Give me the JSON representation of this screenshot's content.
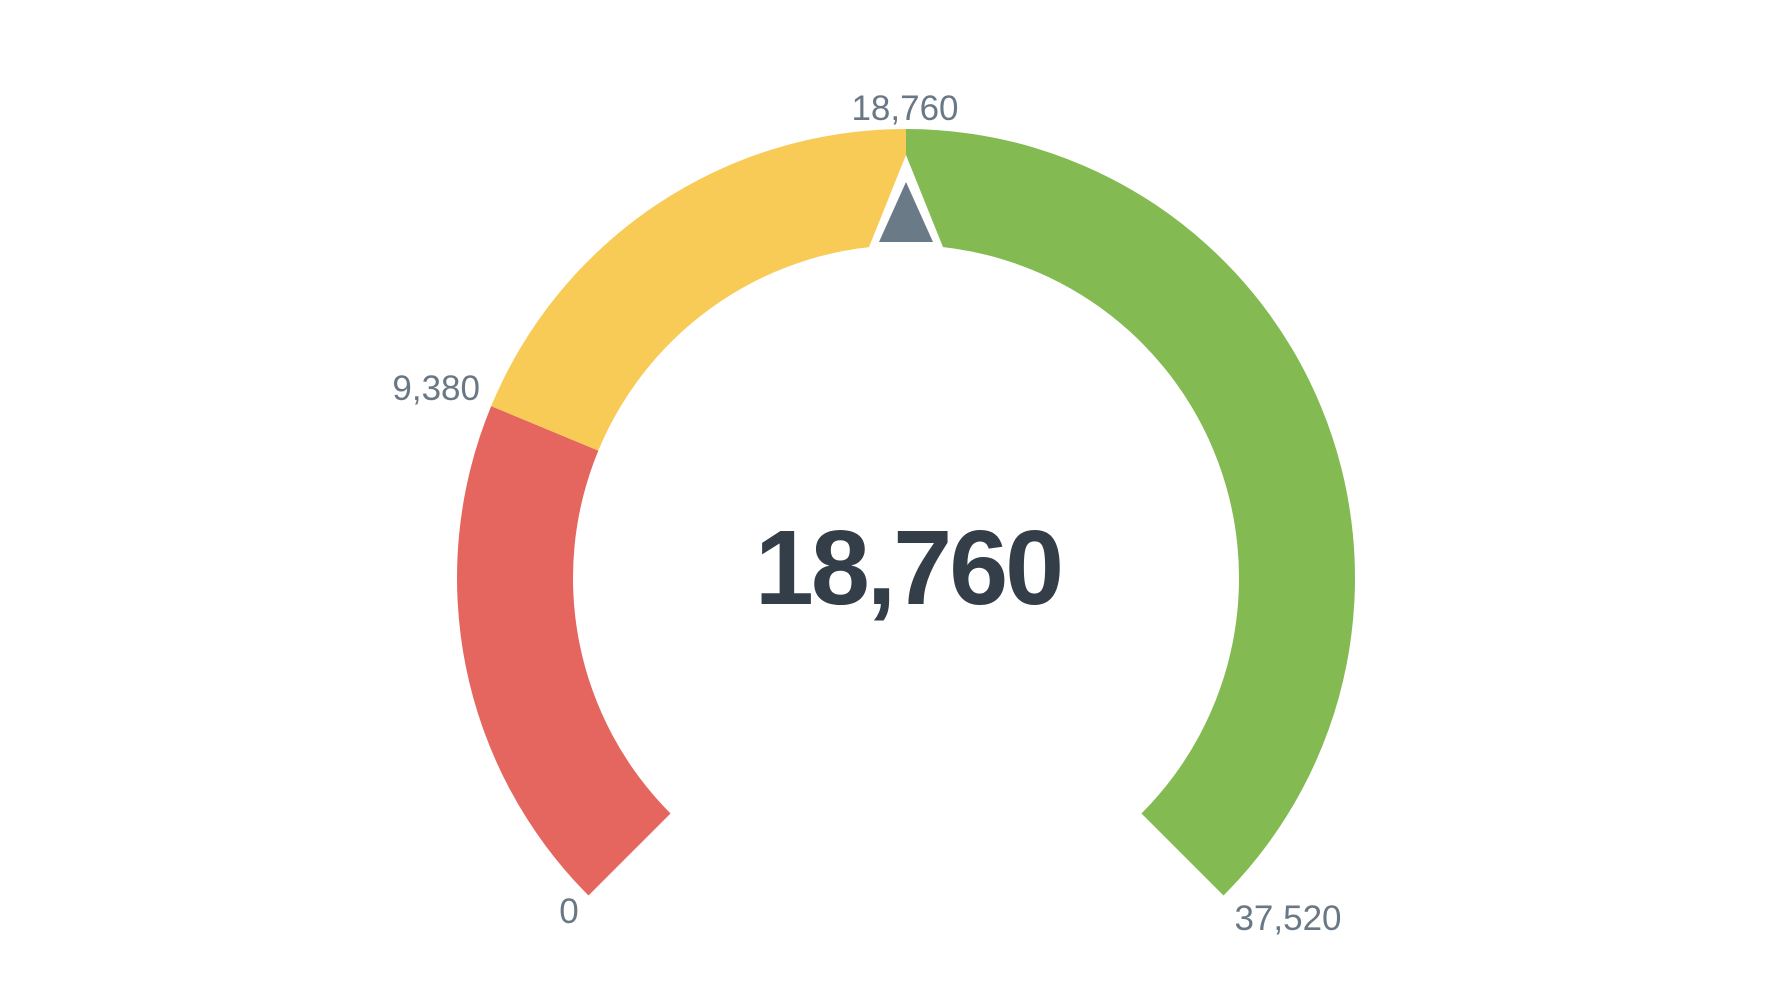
{
  "page": {
    "background_color": "#ffffff"
  },
  "chart_data": {
    "type": "gauge",
    "min": 0,
    "max": 37520,
    "value": 18760,
    "start_angle_deg": 225,
    "end_angle_deg": -45,
    "arc_span_deg": 270,
    "segments": [
      {
        "name": "low",
        "from": 0,
        "to": 9380,
        "color": "#E5665F"
      },
      {
        "name": "mid",
        "from": 9380,
        "to": 18760,
        "color": "#F7CB56"
      },
      {
        "name": "high",
        "from": 18760,
        "to": 37520,
        "color": "#83BA52"
      }
    ],
    "ticks": [
      {
        "value": 0,
        "label": "0"
      },
      {
        "value": 9380,
        "label": "9,380"
      },
      {
        "value": 18760,
        "label": "18,760"
      },
      {
        "value": 37520,
        "label": "37,520"
      }
    ],
    "center_label": "18,760",
    "needle_color": "#6B7A87",
    "notch_color": "#ffffff",
    "tick_label_color": "#6A7885",
    "value_label_color": "#333E48",
    "legend": "off",
    "grid": "off"
  }
}
